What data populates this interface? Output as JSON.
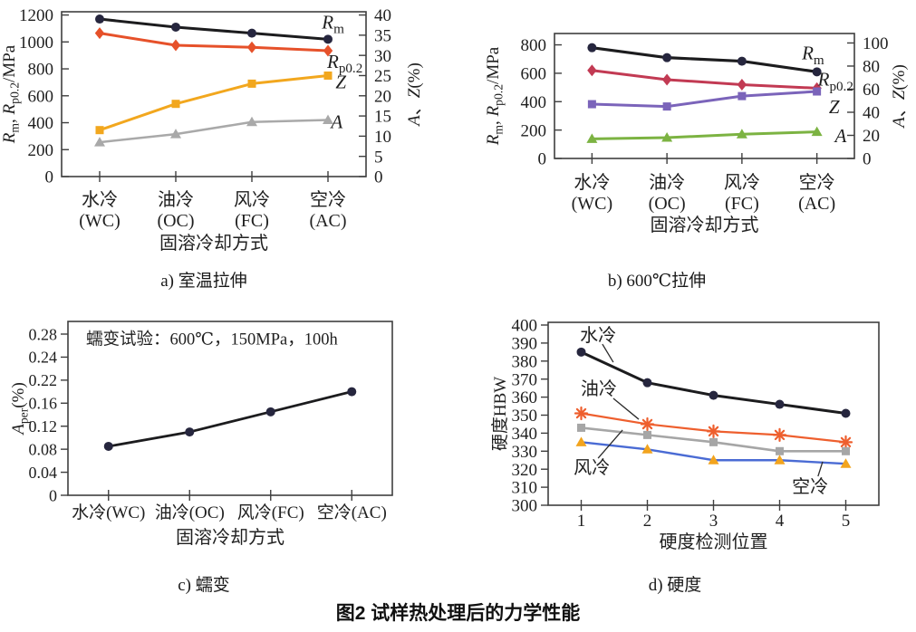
{
  "figure": {
    "title": "图2  试样热处理后的力学性能",
    "captions": {
      "a": "a) 室温拉伸",
      "b": "b) 600℃拉伸",
      "c": "c) 蠕变",
      "d": "d) 硬度"
    }
  },
  "chart_data": [
    {
      "id": "a",
      "type": "line",
      "caption": "a) 室温拉伸",
      "xlabel": "固溶冷却方式",
      "categories": [
        [
          "水冷",
          "(WC)"
        ],
        [
          "油冷",
          "(OC)"
        ],
        [
          "风冷",
          "(FC)"
        ],
        [
          "空冷",
          "(AC)"
        ]
      ],
      "axes": {
        "left": {
          "title_plain": "Rm, Rp0.2/MPa",
          "title_segs": [
            {
              "t": "R",
              "i": true
            },
            {
              "t": "m",
              "s": true
            },
            {
              "t": ", "
            },
            {
              "t": "R",
              "i": true
            },
            {
              "t": "p0.2",
              "s": true
            },
            {
              "t": "/MPa"
            }
          ],
          "ticks": [
            "0",
            "200",
            "400",
            "600",
            "800",
            "1000",
            "1200"
          ],
          "top_extra": 0.12
        },
        "right": {
          "title_plain": "A、Z(%)",
          "title_segs": [
            {
              "t": "A",
              "i": true
            },
            {
              "t": "、"
            },
            {
              "t": "Z",
              "i": true
            },
            {
              "t": "(%)"
            }
          ],
          "ticks": [
            "0",
            "5",
            "10",
            "15",
            "20",
            "25",
            "30",
            "35",
            "40"
          ],
          "top_extra": 0.16
        }
      },
      "series": [
        {
          "name": "Rm",
          "axis": "left",
          "color": "#1c1c1e",
          "marker": "circle",
          "marker_color": "#26263e",
          "lw": 3,
          "values": [
            1170,
            1110,
            1065,
            1020
          ],
          "label": {
            "segs": [
              {
                "t": "R",
                "i": true
              },
              {
                "t": "m",
                "s": true
              }
            ],
            "fx": 0.855,
            "fy": 0.062
          }
        },
        {
          "name": "Rp0.2",
          "axis": "left",
          "color": "#e6512a",
          "marker": "diamond",
          "lw": 3,
          "values": [
            1065,
            975,
            960,
            935
          ],
          "label": {
            "segs": [
              {
                "t": "R",
                "i": true
              },
              {
                "t": "p0.2",
                "s": true
              }
            ],
            "fx": 0.872,
            "fy": 0.3
          }
        },
        {
          "name": "Z",
          "axis": "right",
          "color": "#f2a71e",
          "marker": "square",
          "lw": 3,
          "values": [
            11.5,
            18,
            23,
            25
          ],
          "label": {
            "segs": [
              {
                "t": "Z",
                "i": true
              }
            ],
            "fx": 0.9,
            "fy": 0.425
          }
        },
        {
          "name": "A",
          "axis": "right",
          "color": "#a9a9a9",
          "marker": "triangle",
          "lw": 2.5,
          "values": [
            8.5,
            10.5,
            13.5,
            14
          ],
          "label": {
            "segs": [
              {
                "t": "A",
                "i": true
              }
            ],
            "fx": 0.885,
            "fy": 0.665
          }
        }
      ],
      "annotations": []
    },
    {
      "id": "b",
      "type": "line",
      "caption": "b) 600℃拉伸",
      "xlabel": "固溶冷却方式",
      "categories": [
        [
          "水冷",
          "(WC)"
        ],
        [
          "油冷",
          "(OC)"
        ],
        [
          "风冷",
          "(FC)"
        ],
        [
          "空冷",
          "(AC)"
        ]
      ],
      "axes": {
        "left": {
          "title_plain": "Rm, Rp0.2/MPa",
          "title_segs": [
            {
              "t": "R",
              "i": true
            },
            {
              "t": "m",
              "s": true
            },
            {
              "t": ", "
            },
            {
              "t": "R",
              "i": true
            },
            {
              "t": "p0.2",
              "s": true
            },
            {
              "t": "/MPa"
            }
          ],
          "ticks": [
            "0",
            "200",
            "400",
            "600",
            "800"
          ],
          "top_extra": 0.4
        },
        "right": {
          "title_plain": "A、Z(%)",
          "title_segs": [
            {
              "t": "A",
              "i": true
            },
            {
              "t": "、"
            },
            {
              "t": "Z",
              "i": true
            },
            {
              "t": "(%)"
            }
          ],
          "ticks": [
            "0",
            "20",
            "40",
            "60",
            "80",
            "100"
          ],
          "top_extra": 0.41
        }
      },
      "series": [
        {
          "name": "Rm",
          "axis": "left",
          "color": "#1c1c1e",
          "marker": "circle",
          "marker_color": "#26263e",
          "lw": 3.2,
          "values": [
            780,
            710,
            685,
            610
          ],
          "label": {
            "segs": [
              {
                "t": "R",
                "i": true
              },
              {
                "t": "m",
                "s": true
              }
            ],
            "fx": 0.825,
            "fy": 0.155
          }
        },
        {
          "name": "Rp0.2",
          "axis": "left",
          "color": "#c23a53",
          "marker": "diamond",
          "lw": 3,
          "values": [
            620,
            555,
            520,
            495
          ],
          "label": {
            "segs": [
              {
                "t": "R",
                "i": true
              },
              {
                "t": "p0.2",
                "s": true
              }
            ],
            "fx": 0.878,
            "fy": 0.365
          }
        },
        {
          "name": "Z",
          "axis": "right",
          "color": "#7b64ba",
          "marker": "square",
          "lw": 3,
          "values": [
            47,
            45,
            54,
            58
          ],
          "label": {
            "segs": [
              {
                "t": "Z",
                "i": true
              }
            ],
            "fx": 0.915,
            "fy": 0.585
          }
        },
        {
          "name": "A",
          "axis": "right",
          "color": "#7cb342",
          "marker": "triangle",
          "lw": 3,
          "values": [
            17,
            18,
            21,
            23
          ],
          "label": {
            "segs": [
              {
                "t": "A",
                "i": true
              }
            ],
            "fx": 0.935,
            "fy": 0.815
          }
        }
      ],
      "annotations": []
    },
    {
      "id": "c",
      "type": "line",
      "caption": "c) 蠕变",
      "xlabel": "固溶冷却方式",
      "categories": [
        [
          "水冷(WC)"
        ],
        [
          "油冷(OC)"
        ],
        [
          "风冷(FC)"
        ],
        [
          "空冷(AC)"
        ]
      ],
      "axes": {
        "left": {
          "title_plain": "Aper(%)",
          "title_segs": [
            {
              "t": "A",
              "i": true
            },
            {
              "t": "per",
              "s": true
            },
            {
              "t": "(%)"
            }
          ],
          "ticks": [
            "0",
            "0.04",
            "0.08",
            "0.12",
            "0.16",
            "0.22",
            "0.24",
            "0.28"
          ],
          "top_extra": 0.55
        }
      },
      "series": [
        {
          "name": "Aper",
          "axis": "left",
          "color": "#1c1c1e",
          "marker": "circle",
          "marker_color": "#26263e",
          "lw": 2.8,
          "values": [
            0.085,
            0.11,
            0.145,
            0.19
          ]
        }
      ],
      "annotations": [
        {
          "text": "蠕变试验：600℃，150MPa，100h",
          "fx": 0.056,
          "fy": 0.1,
          "anchor": "start",
          "fs": 18.5
        }
      ]
    },
    {
      "id": "d",
      "type": "line",
      "caption": "d) 硬度",
      "xlabel": "硬度检测位置",
      "categories": [
        [
          "1"
        ],
        [
          "2"
        ],
        [
          "3"
        ],
        [
          "4"
        ],
        [
          "5"
        ]
      ],
      "axes": {
        "left": {
          "title_plain": "硬度HBW",
          "title_segs": [
            {
              "t": "硬度HBW"
            }
          ],
          "ticks": [
            "300",
            "310",
            "320",
            "330",
            "340",
            "350",
            "360",
            "370",
            "380",
            "390",
            "400"
          ],
          "top_extra": 0.15
        }
      },
      "series": [
        {
          "name": "水冷",
          "axis": "left",
          "color": "#1c1c1e",
          "marker": "circle",
          "marker_color": "#26263e",
          "lw": 3,
          "values": [
            385,
            368,
            361,
            356,
            351
          ]
        },
        {
          "name": "油冷",
          "axis": "left",
          "color": "#ee5f2e",
          "marker": "asterisk",
          "lw": 2.2,
          "values": [
            351,
            345,
            341,
            339,
            335
          ]
        },
        {
          "name": "风冷",
          "axis": "left",
          "color": "#a6a6a6",
          "marker": "square",
          "lw": 2.6,
          "values": [
            343,
            339,
            335,
            330,
            330
          ]
        },
        {
          "name": "空冷",
          "axis": "left",
          "color": "#4a6bd4",
          "marker": "triangle",
          "marker_color": "#f2a41e",
          "lw": 2.4,
          "values": [
            335,
            331,
            325,
            325,
            323
          ]
        }
      ],
      "annotations": [
        {
          "text": "水冷",
          "fx": 0.151,
          "fy": 0.069,
          "fs": 20,
          "leader": [
            0.164,
            0.119,
            0.197,
            0.218
          ]
        },
        {
          "text": "油冷",
          "fx": 0.153,
          "fy": 0.361,
          "fs": 20,
          "leader": [
            0.197,
            0.416,
            0.274,
            0.53
          ]
        },
        {
          "text": "风冷",
          "fx": 0.132,
          "fy": 0.792,
          "fs": 20,
          "leader": [
            0.151,
            0.743,
            0.225,
            0.589
          ]
        },
        {
          "text": "空冷",
          "fx": 0.792,
          "fy": 0.896,
          "fs": 20,
          "leader": [
            0.816,
            0.842,
            0.83,
            0.762
          ]
        }
      ]
    }
  ]
}
